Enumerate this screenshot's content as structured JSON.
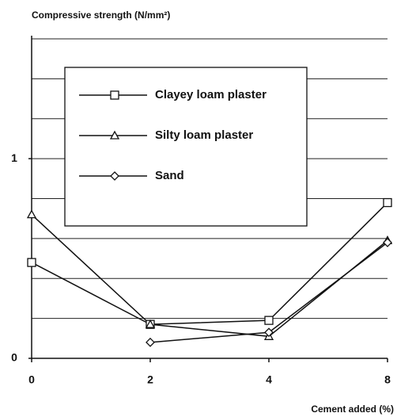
{
  "chart_data": {
    "type": "line",
    "title": "Compressive strength (N/mm²)",
    "x_label": "Cement added (%)",
    "categories": [
      "0",
      "2",
      "4",
      "8"
    ],
    "series": [
      {
        "name": "Clayey loam plaster",
        "marker": "square",
        "color": "#111111",
        "values": [
          0.48,
          0.17,
          0.19,
          0.78
        ]
      },
      {
        "name": "Silty loam plaster",
        "marker": "triangle",
        "color": "#111111",
        "values": [
          0.72,
          0.17,
          0.11,
          0.59
        ]
      },
      {
        "name": "Sand",
        "marker": "diamond",
        "color": "#111111",
        "values": [
          null,
          0.08,
          0.13,
          0.58
        ]
      }
    ],
    "ylim": [
      0,
      1.6
    ],
    "yticks": [
      0,
      1
    ],
    "grid_yticks": [
      0.2,
      0.4,
      0.6,
      0.8,
      1,
      1.2,
      1.4,
      1.6
    ],
    "grid": true
  }
}
